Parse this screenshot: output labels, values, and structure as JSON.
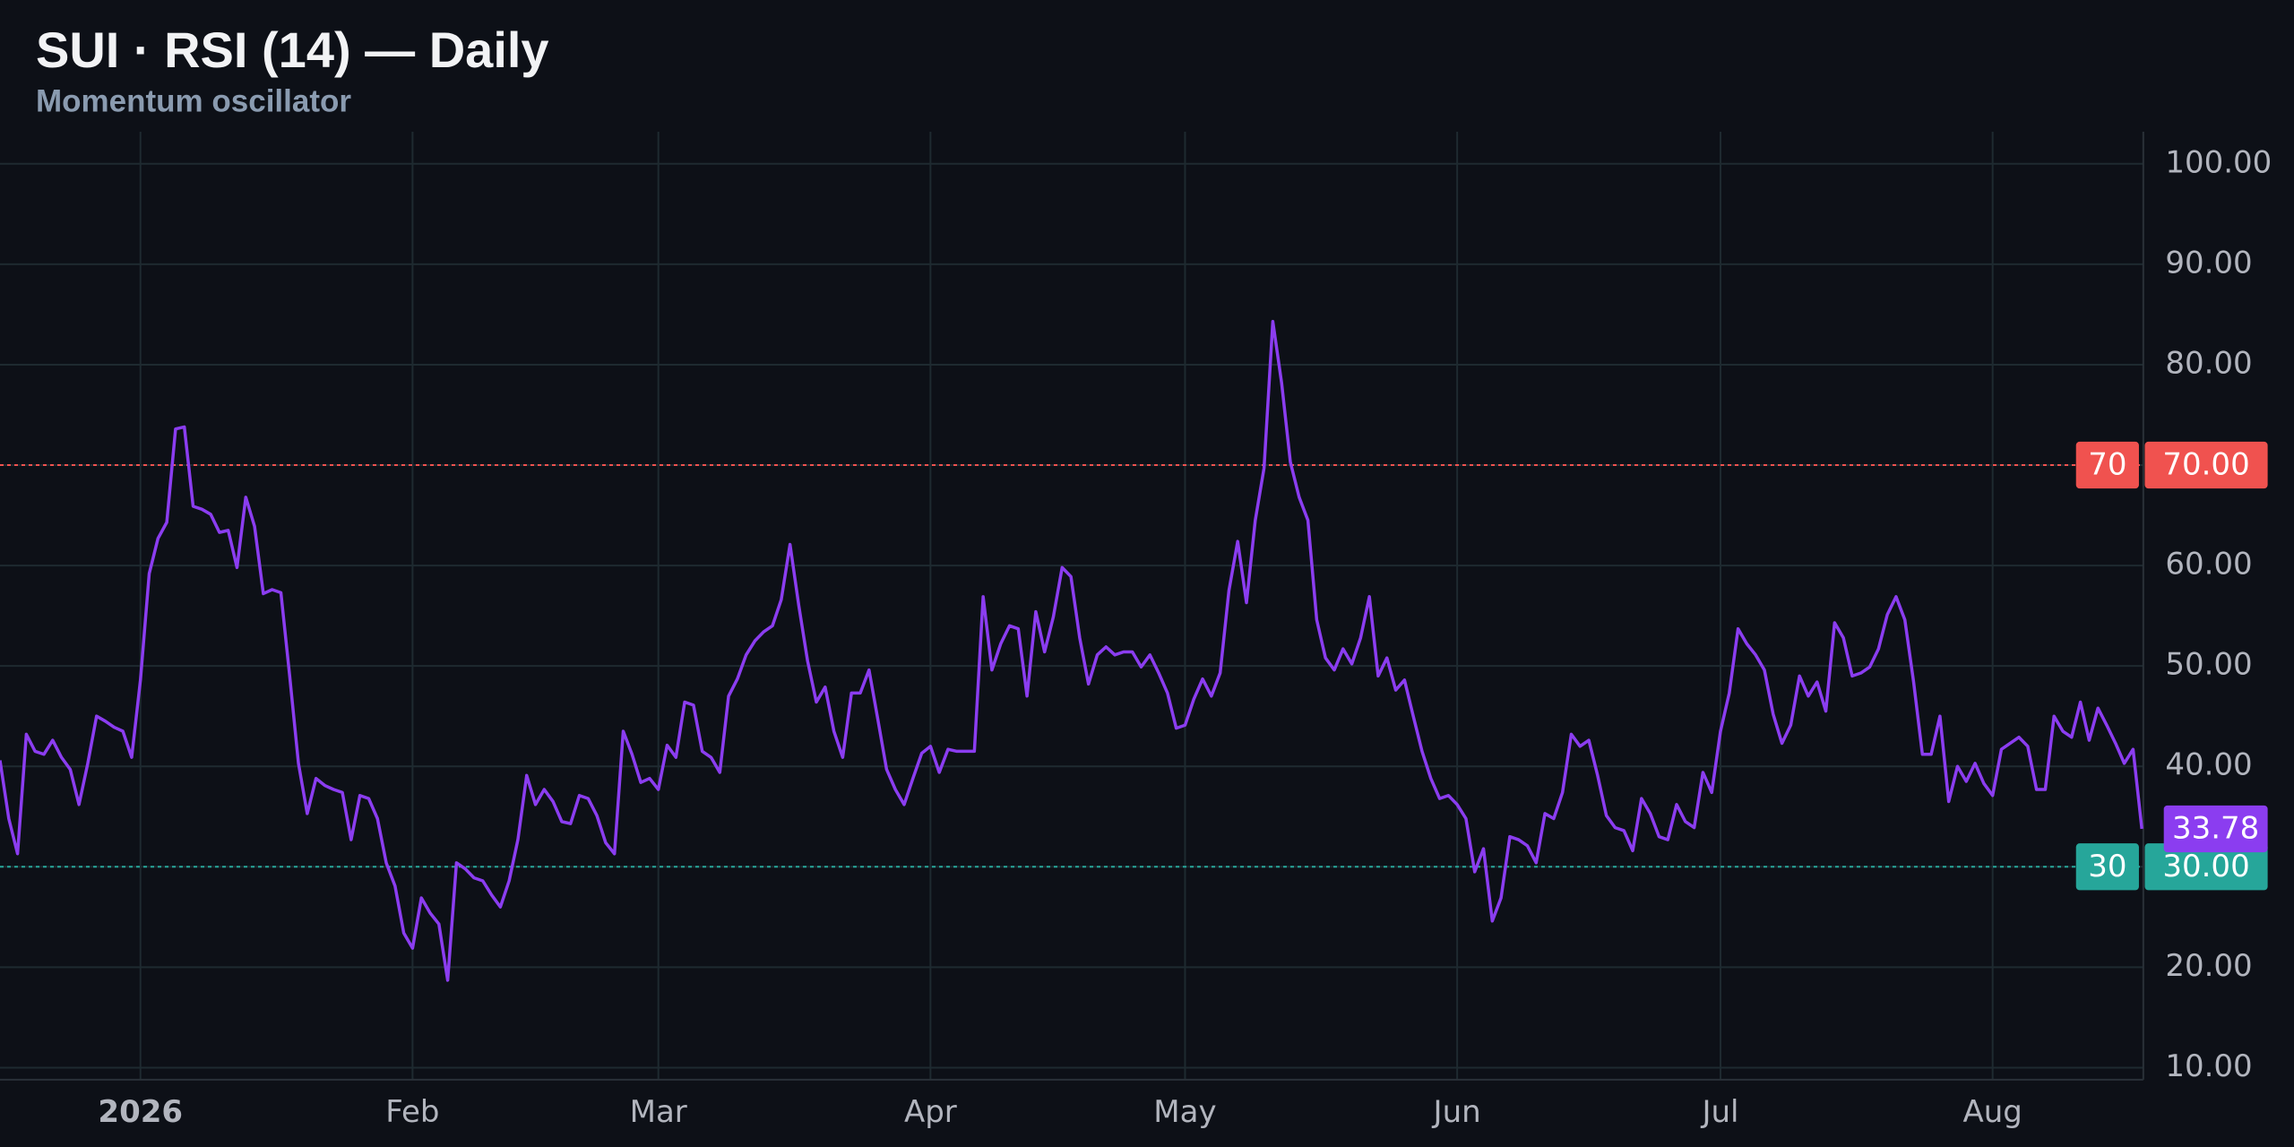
{
  "chart_data": {
    "type": "line",
    "title": "SUI · RSI (14) — Daily",
    "subtitle": "Momentum oscillator",
    "categories": [
      null,
      null,
      null,
      null,
      null,
      null,
      null,
      null,
      null,
      null,
      null,
      null,
      null,
      null,
      null,
      null,
      "2026",
      null,
      null,
      null,
      null,
      null,
      null,
      null,
      null,
      null,
      null,
      null,
      null,
      null,
      null,
      null,
      null,
      null,
      null,
      null,
      null,
      null,
      null,
      null,
      null,
      null,
      null,
      null,
      null,
      null,
      null,
      "Feb",
      null,
      null,
      null,
      null,
      null,
      null,
      null,
      null,
      null,
      null,
      null,
      null,
      null,
      null,
      null,
      null,
      null,
      null,
      null,
      null,
      null,
      null,
      null,
      null,
      null,
      null,
      null,
      "Mar",
      null,
      null,
      null,
      null,
      null,
      null,
      null,
      null,
      null,
      null,
      null,
      null,
      null,
      null,
      null,
      null,
      null,
      null,
      null,
      null,
      null,
      null,
      null,
      null,
      null,
      null,
      null,
      null,
      null,
      null,
      "Apr",
      null,
      null,
      null,
      null,
      null,
      null,
      null,
      null,
      null,
      null,
      null,
      null,
      null,
      null,
      null,
      null,
      null,
      null,
      null,
      null,
      null,
      null,
      null,
      null,
      null,
      null,
      null,
      null,
      "May",
      null,
      null,
      null,
      null,
      null,
      null,
      null,
      null,
      null,
      null,
      null,
      null,
      null,
      null,
      null,
      null,
      null,
      null,
      null,
      null,
      null,
      null,
      null,
      null,
      null,
      null,
      null,
      null,
      null,
      null,
      "Jun",
      null,
      null,
      null,
      null,
      null,
      null,
      null,
      null,
      null,
      null,
      null,
      null,
      null,
      null,
      null,
      null,
      null,
      null,
      null,
      null,
      null,
      null,
      null,
      null,
      null,
      null,
      null,
      null,
      null,
      "Jul",
      null,
      null,
      null,
      null,
      null,
      null,
      null,
      null,
      null,
      null,
      null,
      null,
      null,
      null,
      null,
      null,
      null,
      null,
      null,
      null,
      null,
      null,
      null,
      null,
      null,
      null,
      null,
      null,
      null,
      null,
      "Aug",
      null,
      null,
      null,
      null,
      null,
      null,
      null,
      null,
      null,
      null,
      null,
      null,
      null,
      null,
      null,
      null,
      null
    ],
    "series": [
      {
        "color": "#8b3df0",
        "values": [
          40.6,
          34.8,
          31.3,
          43.2,
          41.5,
          41.2,
          42.6,
          40.9,
          39.7,
          36.2,
          40.3,
          45.0,
          44.5,
          43.9,
          43.5,
          40.9,
          48.6,
          59.2,
          62.7,
          64.3,
          73.6,
          73.8,
          65.9,
          65.6,
          65.1,
          63.3,
          63.5,
          59.8,
          66.8,
          63.9,
          57.2,
          57.6,
          57.3,
          49.0,
          40.3,
          35.3,
          38.8,
          38.1,
          37.7,
          37.4,
          32.7,
          37.1,
          36.8,
          34.8,
          30.4,
          28.1,
          23.4,
          21.9,
          26.9,
          25.4,
          24.3,
          18.7,
          30.4,
          29.8,
          28.9,
          28.6,
          27.2,
          26.0,
          28.6,
          32.7,
          39.1,
          36.2,
          37.7,
          36.5,
          34.5,
          34.3,
          37.1,
          36.8,
          35.1,
          32.4,
          31.3,
          43.5,
          41.2,
          38.4,
          38.8,
          37.7,
          42.1,
          40.9,
          46.4,
          46.1,
          41.5,
          40.9,
          39.4,
          47.0,
          48.7,
          51.1,
          52.5,
          53.4,
          54.0,
          56.6,
          62.1,
          56.0,
          50.5,
          46.4,
          47.9,
          43.5,
          40.9,
          47.3,
          47.3,
          49.6,
          44.7,
          39.7,
          37.7,
          36.2,
          38.8,
          41.3,
          42.0,
          39.4,
          41.7,
          41.5,
          41.5,
          41.5,
          56.9,
          49.6,
          52.2,
          54.0,
          53.7,
          47.0,
          55.4,
          51.4,
          54.9,
          59.8,
          58.9,
          52.8,
          48.2,
          51.1,
          51.9,
          51.1,
          51.4,
          51.4,
          49.9,
          51.1,
          49.3,
          47.3,
          43.8,
          44.1,
          46.7,
          48.7,
          47.0,
          49.3,
          57.5,
          62.4,
          56.3,
          64.5,
          69.7,
          84.3,
          78.2,
          70.3,
          66.8,
          64.5,
          54.6,
          50.8,
          49.6,
          51.7,
          50.2,
          52.8,
          56.9,
          49.0,
          50.8,
          47.6,
          48.6,
          45.0,
          41.5,
          38.8,
          36.8,
          37.1,
          36.2,
          34.8,
          29.5,
          31.8,
          24.6,
          26.9,
          33.0,
          32.7,
          32.1,
          30.4,
          35.3,
          34.8,
          37.4,
          43.2,
          42.0,
          42.6,
          39.1,
          35.1,
          33.9,
          33.6,
          31.6,
          36.8,
          35.3,
          33.0,
          32.7,
          36.2,
          34.5,
          33.9,
          39.4,
          37.4,
          43.5,
          47.3,
          53.7,
          52.2,
          51.1,
          49.6,
          45.2,
          42.3,
          44.1,
          49.0,
          47.0,
          48.4,
          45.5,
          54.3,
          52.8,
          49.0,
          49.3,
          49.9,
          51.7,
          55.1,
          56.9,
          54.6,
          48.4,
          41.2,
          41.2,
          45.0,
          36.5,
          40.0,
          38.5,
          40.3,
          38.3,
          37.1,
          41.7,
          42.3,
          42.9,
          42.0,
          37.7,
          37.7,
          45.0,
          43.5,
          42.9,
          46.4,
          42.6,
          45.8,
          44.1,
          42.3,
          40.3,
          41.7,
          33.78
        ]
      }
    ],
    "last_value_label": "33.78",
    "hlines": [
      {
        "value": 70,
        "label": "70",
        "axis_label": "70.00",
        "color": "#f0524f"
      },
      {
        "value": 30,
        "label": "30",
        "axis_label": "30.00",
        "color": "#26a69a"
      }
    ],
    "ylim": [
      8.8,
      103.2
    ],
    "yticks": [
      {
        "value": 10,
        "label": "10.00"
      },
      {
        "value": 20,
        "label": "20.00"
      },
      {
        "value": 30,
        "label": "30.00"
      },
      {
        "value": 40,
        "label": "40.00"
      },
      {
        "value": 50,
        "label": "50.00"
      },
      {
        "value": 60,
        "label": "60.00"
      },
      {
        "value": 70,
        "label": "70.00"
      },
      {
        "value": 80,
        "label": "80.00"
      },
      {
        "value": 90,
        "label": "90.00"
      },
      {
        "value": 100,
        "label": "100.00"
      }
    ],
    "grid": true
  }
}
